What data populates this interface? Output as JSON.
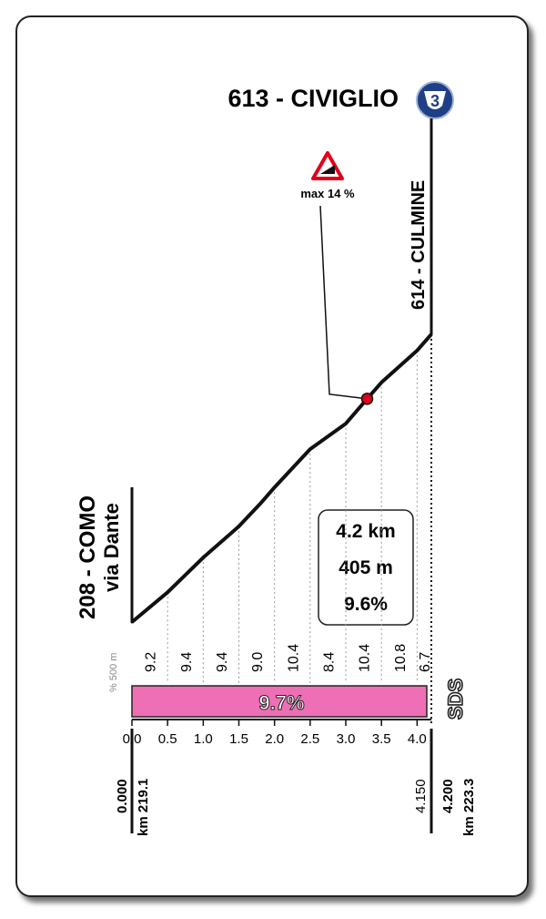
{
  "chart_data": {
    "type": "line",
    "title": "613 - CIVIGLIO",
    "badge": "3",
    "summit_label": "614 - CULMINE",
    "start_label": "208 - COMO",
    "start_sublabel": "via Dante",
    "max_gradient": {
      "label": "max 14 %",
      "x": 3.3
    },
    "summary": [
      "4.2 km",
      "405 m",
      "9.6%"
    ],
    "x": [
      0,
      0.5,
      1.0,
      1.5,
      1.8,
      2.0,
      2.5,
      3.0,
      3.3,
      3.5,
      4.0,
      4.2
    ],
    "values": [
      208,
      250,
      299,
      343,
      375,
      398,
      452,
      488,
      523,
      546,
      591,
      614
    ],
    "color": "#111111",
    "xlim": [
      0,
      4.2
    ],
    "xticks": [
      {
        "value": 0,
        "label": "0.0"
      },
      0.5,
      {
        "value": 1,
        "label": "1.0"
      },
      1.5,
      {
        "value": 2,
        "label": "2.0"
      },
      2.5,
      {
        "value": 3,
        "label": "3.0"
      },
      3.5,
      {
        "value": 4,
        "label": "4.0"
      }
    ],
    "gradient_unit": "% 500 m",
    "gradients": {
      "values": [
        9.2,
        9.4,
        9.4,
        9,
        10.4,
        8.4,
        10.4,
        10.8,
        6.7
      ],
      "value_labels": [
        "9.2",
        "9.4",
        "9.4",
        "9.0",
        "10.4",
        "8.4",
        "10.4",
        "10.8",
        "6.7"
      ]
    },
    "average": {
      "value": 9.7,
      "label": "9.7%",
      "color": "#ee6fb5"
    },
    "logo": "SDS",
    "start_distance": "0.000",
    "start_km": "km 219.1",
    "summit_distance": "4.150",
    "end_distance": "4.200",
    "end_km": "km 223.3"
  }
}
